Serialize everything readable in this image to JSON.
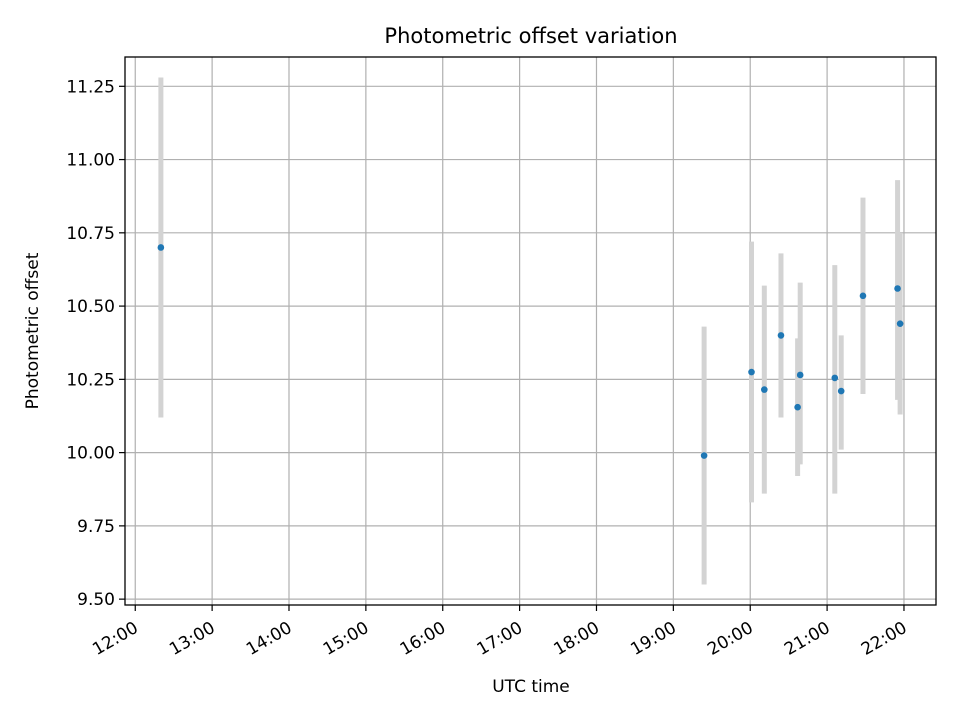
{
  "chart_data": {
    "type": "scatter",
    "title": "Photometric offset variation",
    "xlabel": "UTC time",
    "ylabel": "Photometric offset",
    "x_unit": "hours UTC",
    "xlim": [
      "11:52",
      "22:25"
    ],
    "ylim": [
      9.48,
      11.35
    ],
    "x_ticks": [
      "12:00",
      "13:00",
      "14:00",
      "15:00",
      "16:00",
      "17:00",
      "18:00",
      "19:00",
      "20:00",
      "21:00",
      "22:00"
    ],
    "y_ticks": [
      "9.50",
      "9.75",
      "10.00",
      "10.25",
      "10.50",
      "10.75",
      "11.00",
      "11.25"
    ],
    "grid": true,
    "marker_color": "#1f77b4",
    "errorbar_color": "#d3d3d3",
    "points": [
      {
        "x": "12:20",
        "y": 10.7,
        "ylow": 10.12,
        "yhigh": 11.28
      },
      {
        "x": "19:24",
        "y": 9.99,
        "ylow": 9.55,
        "yhigh": 10.43
      },
      {
        "x": "20:01",
        "y": 10.275,
        "ylow": 9.83,
        "yhigh": 10.72
      },
      {
        "x": "20:11",
        "y": 10.215,
        "ylow": 9.86,
        "yhigh": 10.57
      },
      {
        "x": "20:24",
        "y": 10.4,
        "ylow": 10.12,
        "yhigh": 10.68
      },
      {
        "x": "20:37",
        "y": 10.155,
        "ylow": 9.92,
        "yhigh": 10.39
      },
      {
        "x": "20:39",
        "y": 10.265,
        "ylow": 9.96,
        "yhigh": 10.58
      },
      {
        "x": "21:06",
        "y": 10.255,
        "ylow": 9.86,
        "yhigh": 10.64
      },
      {
        "x": "21:11",
        "y": 10.21,
        "ylow": 10.01,
        "yhigh": 10.4
      },
      {
        "x": "21:28",
        "y": 10.535,
        "ylow": 10.2,
        "yhigh": 10.87
      },
      {
        "x": "21:55",
        "y": 10.56,
        "ylow": 10.18,
        "yhigh": 10.93
      },
      {
        "x": "21:57",
        "y": 10.44,
        "ylow": 10.13,
        "yhigh": 10.75
      }
    ]
  }
}
